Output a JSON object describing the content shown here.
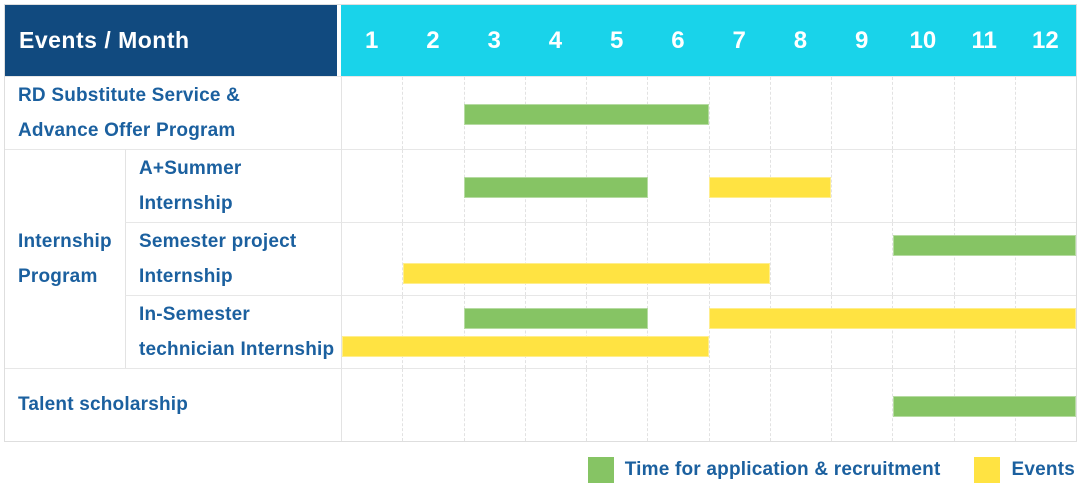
{
  "colors": {
    "header_bg": "#114A7F",
    "months_bg": "#19D3EA",
    "header_text": "#FFFFFF",
    "label_text": "#1B609F",
    "application_green": "#86C464",
    "events_yellow": "#FFE342",
    "grid_line": "#E3E3E3"
  },
  "chart_data": {
    "type": "table",
    "title": "Events / Month",
    "months": [
      "1",
      "2",
      "3",
      "4",
      "5",
      "6",
      "7",
      "8",
      "9",
      "10",
      "11",
      "12"
    ],
    "group_label": "Internship\nProgram",
    "rows": [
      {
        "id": "rd-substitute",
        "label": "RD Substitute Service &\nAdvance Offer Program",
        "group": null,
        "lanes": [
          [
            {
              "kind": "application",
              "start_month": 3,
              "end_month": 6
            }
          ]
        ]
      },
      {
        "id": "a-plus-summer-internship",
        "label": "A+Summer\nInternship",
        "group": "Internship Program",
        "lanes": [
          [
            {
              "kind": "application",
              "start_month": 3,
              "end_month": 5
            },
            {
              "kind": "events",
              "start_month": 7,
              "end_month": 8
            }
          ]
        ]
      },
      {
        "id": "semester-project-internship",
        "label": "Semester project\nInternship",
        "group": "Internship Program",
        "lanes": [
          [
            {
              "kind": "application",
              "start_month": 10,
              "end_month": 12
            }
          ],
          [
            {
              "kind": "events",
              "start_month": 2,
              "end_month": 7
            }
          ]
        ]
      },
      {
        "id": "in-semester-technician-internship",
        "label": "In-Semester\ntechnician Internship",
        "group": "Internship Program",
        "lanes": [
          [
            {
              "kind": "application",
              "start_month": 3,
              "end_month": 5
            },
            {
              "kind": "events",
              "start_month": 7,
              "end_month": 12
            }
          ],
          [
            {
              "kind": "events",
              "start_month": 1,
              "end_month": 6
            }
          ]
        ]
      },
      {
        "id": "talent-scholarship",
        "label": "Talent scholarship",
        "group": null,
        "lanes": [
          [
            {
              "kind": "application",
              "start_month": 10,
              "end_month": 12
            }
          ]
        ]
      }
    ],
    "legend": [
      {
        "kind": "application",
        "label": "Time for application & recruitment",
        "color": "#86C464"
      },
      {
        "kind": "events",
        "label": "Events",
        "color": "#FFE342"
      }
    ],
    "x_range": [
      1,
      12
    ],
    "grid": true,
    "legend_position": "bottom-right"
  }
}
